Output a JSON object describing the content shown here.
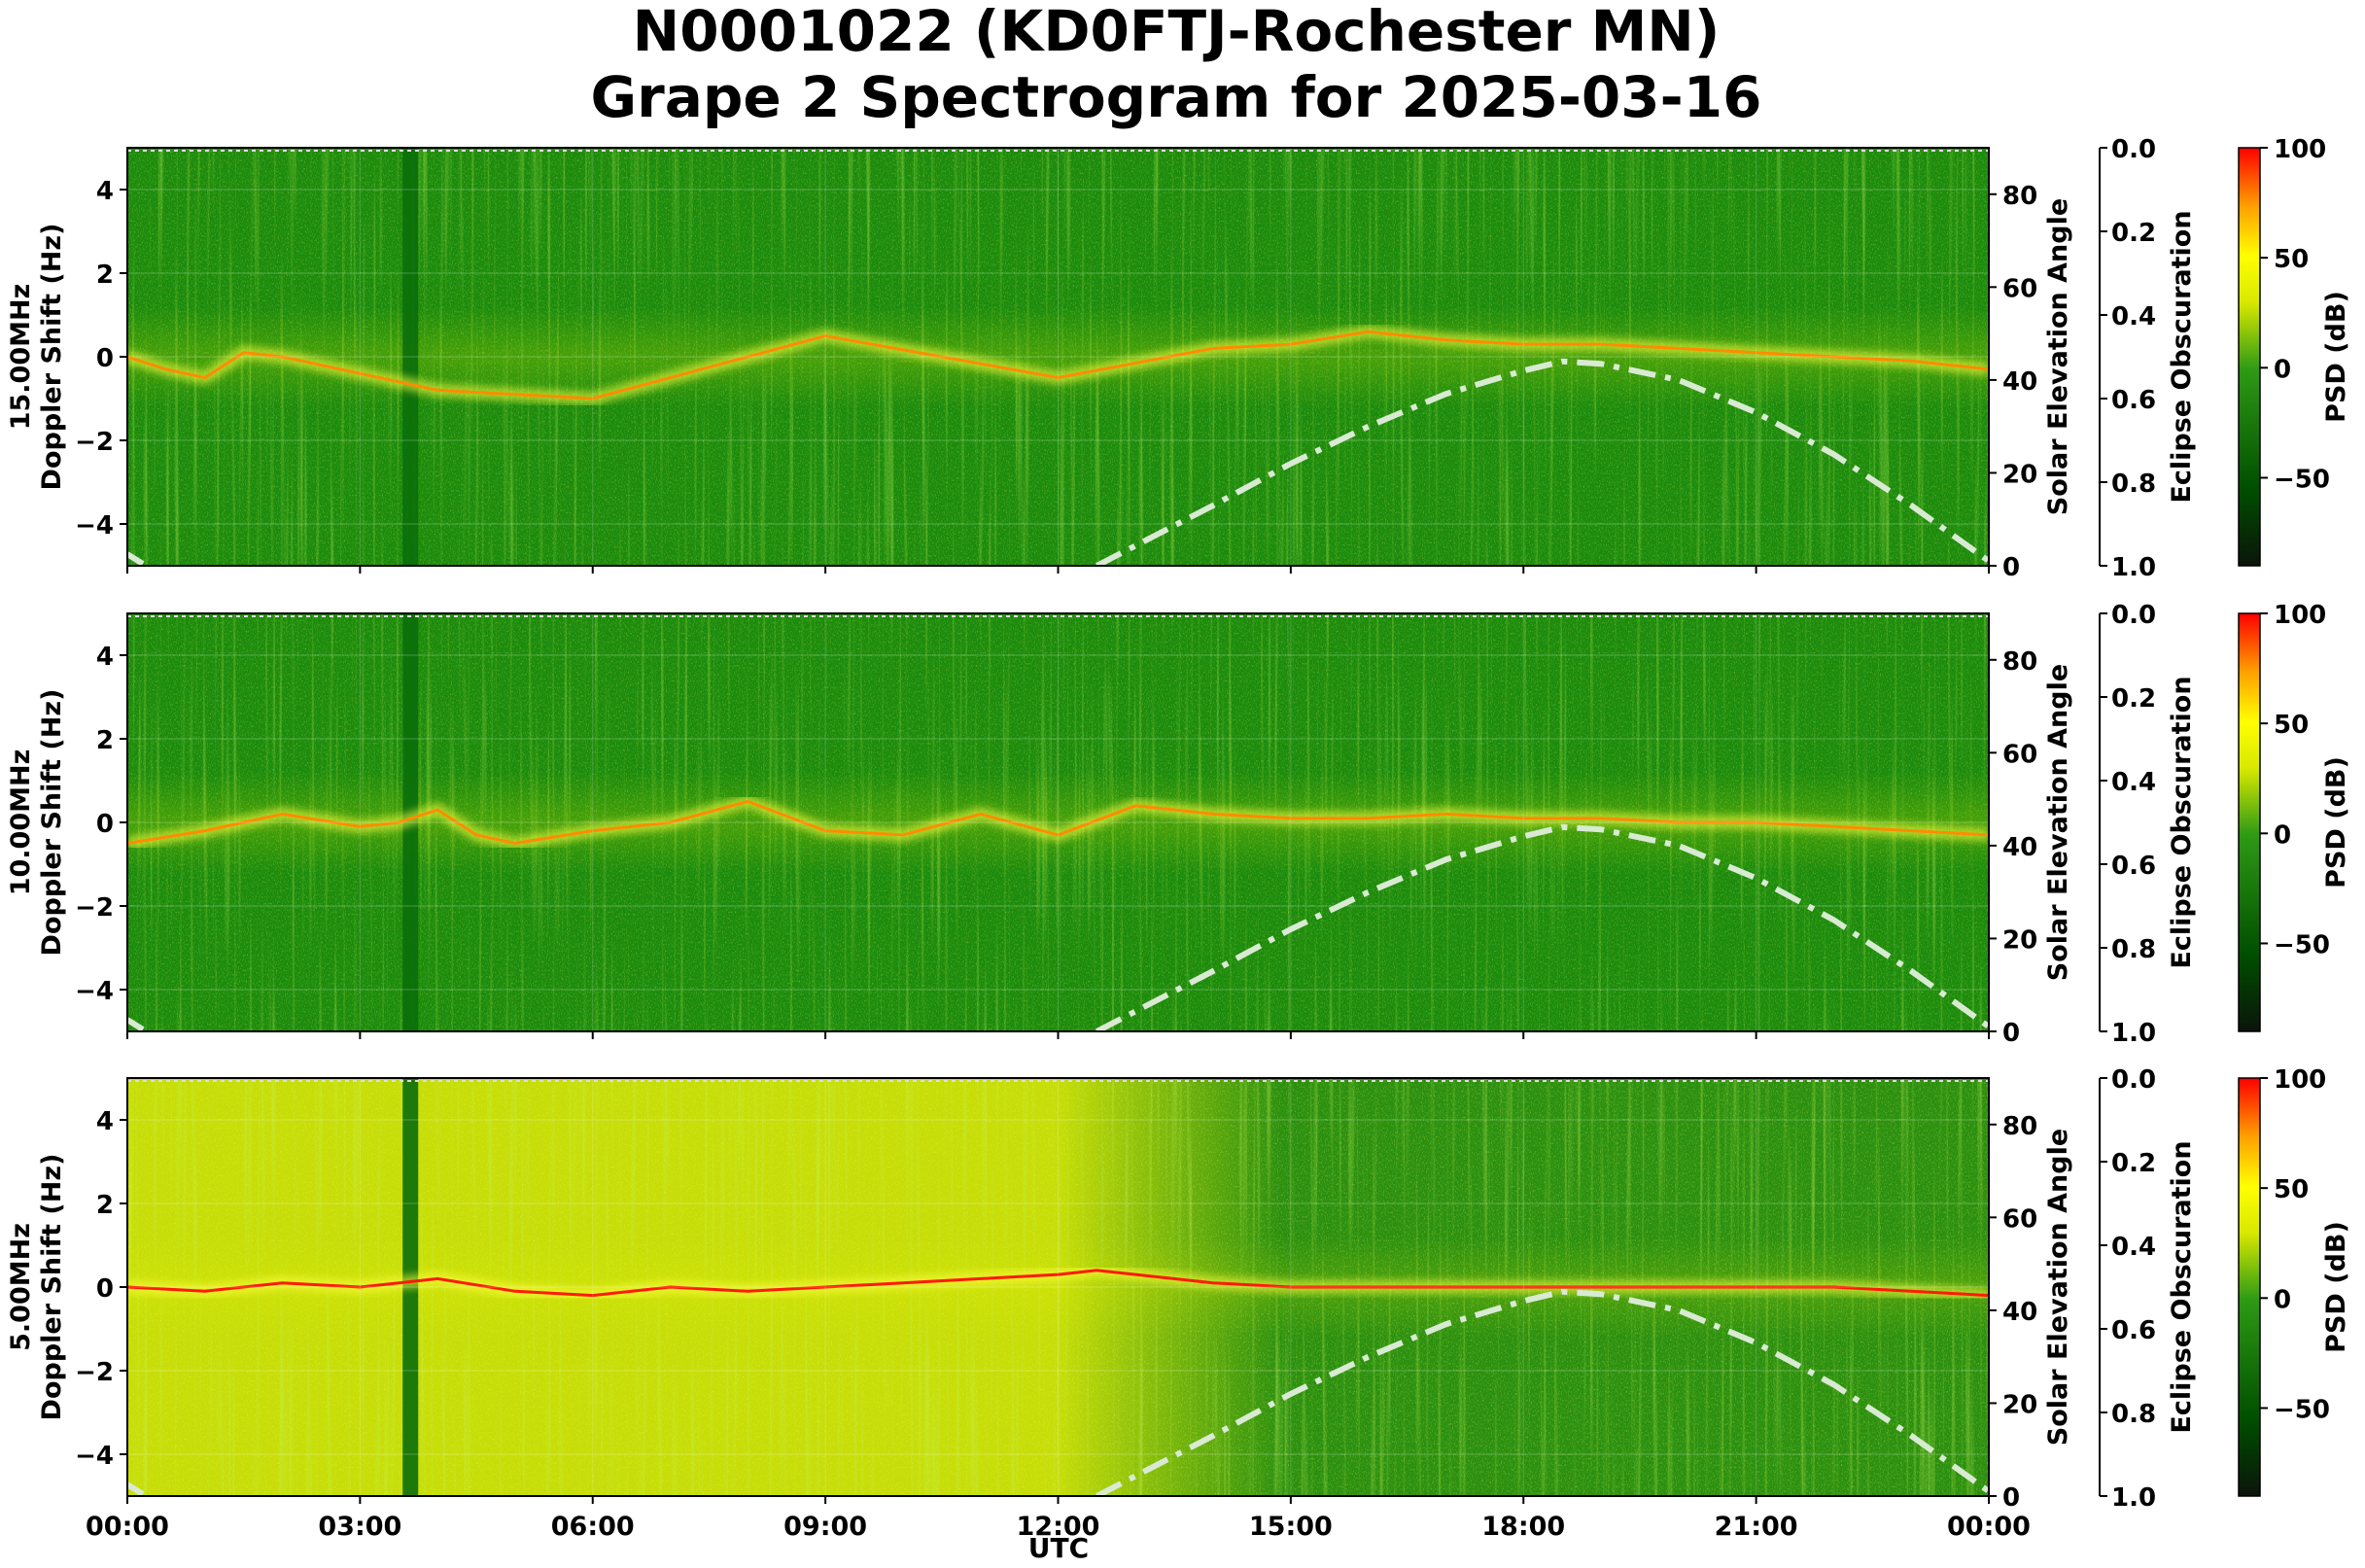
{
  "title": {
    "line1": "N0001022 (KD0FTJ-Rochester MN)",
    "line2": "Grape 2 Spectrogram for 2025-03-16"
  },
  "xaxis": {
    "label": "UTC",
    "ticks": [
      "00:00",
      "03:00",
      "06:00",
      "09:00",
      "12:00",
      "15:00",
      "18:00",
      "21:00",
      "00:00"
    ]
  },
  "colorbar": {
    "label": "PSD (dB)",
    "ticks": [
      "100",
      "50",
      "0",
      "−50"
    ],
    "range": [
      -90,
      100
    ]
  },
  "right_axes": {
    "elevation_label": "Solar Elevation Angle",
    "elevation_ticks": [
      "0",
      "20",
      "40",
      "60",
      "80"
    ],
    "obscuration_label": "Eclipse Obscuration",
    "obscuration_ticks": [
      "0.0",
      "0.2",
      "0.4",
      "0.6",
      "0.8",
      "1.0"
    ]
  },
  "yaxis": {
    "label": "Doppler Shift (Hz)",
    "ticks": [
      "4",
      "2",
      "0",
      "−2",
      "−4"
    ]
  },
  "colors": {
    "green_dark": "#006400",
    "green": "#1c8a0e",
    "yellow": "#f2f200",
    "orange": "#ff8c00",
    "red": "#ff1a00",
    "elevation_curve": "#d9ead3"
  },
  "chart_data": [
    {
      "type": "heatmap",
      "panel_label": "15.00MHz",
      "ylabel": "Doppler Shift (Hz)",
      "x_range_utc_hours": [
        0,
        24
      ],
      "ylim": [
        -5,
        5
      ],
      "y2_label": "Solar Elevation Angle",
      "y2lim": [
        0,
        90
      ],
      "background_level": "green",
      "trace": {
        "x": [
          0,
          0.5,
          1,
          1.5,
          2,
          4,
          6,
          9,
          12,
          14,
          15,
          16,
          17,
          18,
          19,
          20,
          21,
          22,
          23,
          24
        ],
        "y": [
          0,
          -0.3,
          -0.5,
          0.1,
          0,
          -0.8,
          -1.0,
          0.5,
          -0.5,
          0.2,
          0.3,
          0.6,
          0.4,
          0.3,
          0.3,
          0.2,
          0.1,
          0.0,
          -0.1,
          -0.3
        ]
      },
      "solar_elevation": {
        "x": [
          12.5,
          14,
          15,
          16,
          17,
          18,
          18.5,
          19,
          20,
          21,
          22,
          23,
          24
        ],
        "y": [
          0,
          13,
          22,
          30,
          37,
          42,
          44,
          43.5,
          40,
          33,
          24,
          13,
          1
        ]
      }
    },
    {
      "type": "heatmap",
      "panel_label": "10.00MHz",
      "ylabel": "Doppler Shift (Hz)",
      "x_range_utc_hours": [
        0,
        24
      ],
      "ylim": [
        -5,
        5
      ],
      "y2_label": "Solar Elevation Angle",
      "y2lim": [
        0,
        90
      ],
      "background_level": "green",
      "trace": {
        "x": [
          0,
          1,
          2,
          3,
          3.5,
          4,
          4.5,
          5,
          6,
          7,
          8,
          9,
          10,
          11,
          12,
          13,
          14,
          15,
          16,
          17,
          18,
          19,
          20,
          21,
          22,
          23,
          24
        ],
        "y": [
          -0.5,
          -0.2,
          0.2,
          -0.1,
          0,
          0.3,
          -0.3,
          -0.5,
          -0.2,
          0.0,
          0.5,
          -0.2,
          -0.3,
          0.2,
          -0.3,
          0.4,
          0.2,
          0.1,
          0.1,
          0.2,
          0.1,
          0.1,
          0.0,
          0.0,
          -0.1,
          -0.2,
          -0.3
        ]
      },
      "solar_elevation": {
        "x": [
          12.5,
          14,
          15,
          16,
          17,
          18,
          18.5,
          19,
          20,
          21,
          22,
          23,
          24
        ],
        "y": [
          0,
          13,
          22,
          30,
          37,
          42,
          44,
          43.5,
          40,
          33,
          24,
          13,
          1
        ]
      }
    },
    {
      "type": "heatmap",
      "panel_label": "5.00MHz",
      "ylabel": "Doppler Shift (Hz)",
      "x_range_utc_hours": [
        0,
        24
      ],
      "ylim": [
        -5,
        5
      ],
      "y2_label": "Solar Elevation Angle",
      "y2lim": [
        0,
        90
      ],
      "background_level": "yellow",
      "trace": {
        "x": [
          0,
          1,
          2,
          3,
          3.5,
          4,
          5,
          6,
          7,
          8,
          9,
          10,
          11,
          12,
          12.5,
          13,
          14,
          15,
          16,
          17,
          18,
          19,
          20,
          21,
          22,
          23,
          24
        ],
        "y": [
          0,
          -0.1,
          0.1,
          0.0,
          0.1,
          0.2,
          -0.1,
          -0.2,
          0.0,
          -0.1,
          0.0,
          0.1,
          0.2,
          0.3,
          0.4,
          0.3,
          0.1,
          0.0,
          0.0,
          0.0,
          0.0,
          0.0,
          0.0,
          0.0,
          0.0,
          -0.1,
          -0.2
        ]
      },
      "solar_elevation": {
        "x": [
          12.5,
          14,
          15,
          16,
          17,
          18,
          18.5,
          19,
          20,
          21,
          22,
          23,
          24
        ],
        "y": [
          0,
          13,
          22,
          30,
          37,
          42,
          44,
          43.5,
          40,
          33,
          24,
          13,
          1
        ]
      }
    }
  ]
}
